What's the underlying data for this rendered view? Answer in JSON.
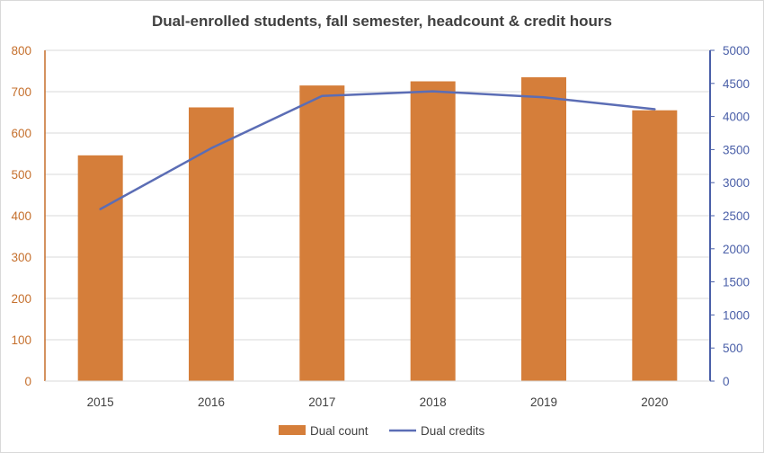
{
  "chart_data": {
    "type": "bar",
    "title": "Dual-enrolled students, fall semester, headcount & credit hours",
    "categories": [
      "2015",
      "2016",
      "2017",
      "2018",
      "2019",
      "2020"
    ],
    "series": [
      {
        "name": "Dual count",
        "type": "bar",
        "axis": "left",
        "color": "#d57e3a",
        "values": [
          546,
          662,
          715,
          725,
          735,
          655
        ]
      },
      {
        "name": "Dual credits",
        "type": "line",
        "axis": "right",
        "color": "#5b6db5",
        "values": [
          2600,
          3520,
          4310,
          4380,
          4290,
          4110
        ]
      }
    ],
    "y_left": {
      "min": 0,
      "max": 800,
      "step": 100,
      "color": "#c56f2c"
    },
    "y_right": {
      "min": 0,
      "max": 5000,
      "step": 500,
      "color": "#4a5fa8"
    },
    "grid": true,
    "legend_position": "bottom"
  }
}
